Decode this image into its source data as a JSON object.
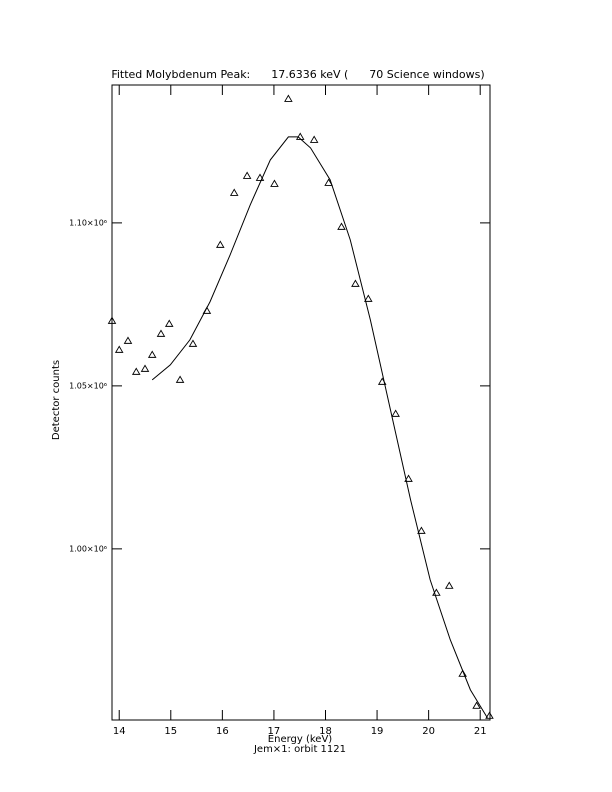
{
  "chart_data": {
    "type": "scatter",
    "title": "Fitted Molybdenum Peak:      17.6336 keV (      70 Science windows)",
    "x_label": "Energy (keV)",
    "subcaption": "Jem×1: orbit 1121",
    "y_label": "Detector counts",
    "xlim": [
      13.86,
      21.19
    ],
    "ylim": [
      947500,
      1142300
    ],
    "xticks": [
      14,
      15,
      16,
      17,
      18,
      19,
      20,
      21
    ],
    "yticks": [
      {
        "value": 1000000,
        "label": "1.00×10⁶"
      },
      {
        "value": 1050000,
        "label": "1.05×10⁶"
      },
      {
        "value": 1100000,
        "label": "1.10×10⁶"
      }
    ],
    "color": "#000000",
    "series": [
      {
        "kind": "points",
        "x": [
          13.86,
          14.0,
          14.17,
          14.33,
          14.5,
          14.64,
          14.81,
          14.97,
          15.18,
          15.43,
          15.7,
          15.96,
          16.23,
          16.48,
          16.73,
          17.01,
          17.28,
          17.51,
          17.78,
          18.06,
          18.31,
          18.58,
          18.83,
          19.1,
          19.36,
          19.61,
          19.86,
          20.15,
          20.4,
          20.66,
          20.93,
          21.18
        ],
        "values": [
          1069939,
          1061043,
          1063804,
          1054294,
          1055215,
          1059509,
          1065951,
          1069018,
          1051840,
          1062883,
          1073006,
          1093252,
          1109202,
          1114417,
          1113804,
          1111963,
          1138037,
          1126380,
          1125460,
          1112270,
          1098773,
          1081288,
          1076687,
          1051227,
          1041411,
          1021472,
          1005521,
          986503,
          988650,
          961656,
          951840,
          948773
        ]
      },
      {
        "kind": "line",
        "x": [
          14.64,
          14.99,
          15.37,
          15.76,
          16.15,
          16.54,
          16.93,
          17.28,
          17.47,
          17.71,
          18.09,
          18.48,
          18.87,
          19.26,
          19.65,
          20.03,
          20.42,
          20.81,
          21.14
        ],
        "values": [
          1051840,
          1056442,
          1064110,
          1075767,
          1090184,
          1105521,
          1119325,
          1126380,
          1126380,
          1123006,
          1113190,
          1094785,
          1070245,
          1042638,
          1015031,
          990491,
          972086,
          956748,
          948160
        ]
      }
    ]
  }
}
